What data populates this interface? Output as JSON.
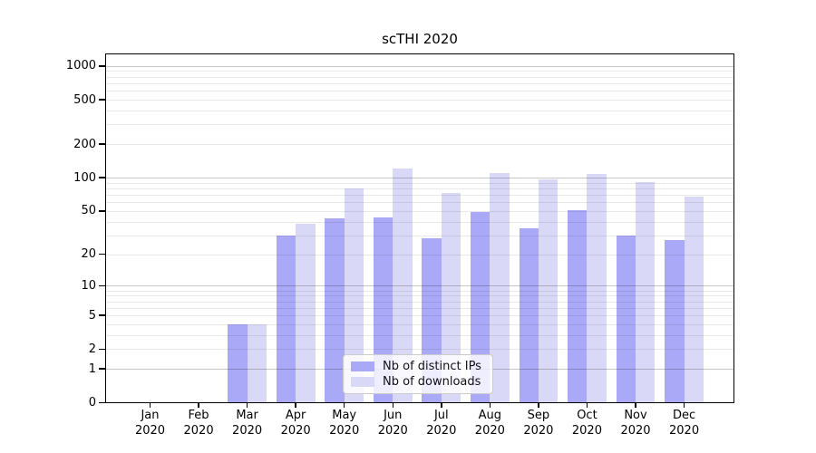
{
  "chart_data": {
    "type": "bar",
    "title": "scTHI 2020",
    "year_label": "2020",
    "categories": [
      "Jan",
      "Feb",
      "Mar",
      "Apr",
      "May",
      "Jun",
      "Jul",
      "Aug",
      "Sep",
      "Oct",
      "Nov",
      "Dec"
    ],
    "series": [
      {
        "name": "Nb of distinct IPs",
        "color": "#a9a9f7",
        "values": [
          0,
          0,
          4,
          30,
          43,
          44,
          28,
          49,
          35,
          51,
          30,
          27
        ]
      },
      {
        "name": "Nb of downloads",
        "color": "#d9d9f7",
        "values": [
          0,
          0,
          4,
          38,
          80,
          121,
          73,
          111,
          96,
          108,
          92,
          68
        ]
      }
    ],
    "xlabel": "",
    "ylabel": "",
    "yscale": "log1p",
    "ylim": [
      0,
      1200
    ],
    "yticks": [
      0,
      1,
      2,
      5,
      10,
      20,
      50,
      100,
      200,
      500,
      1000
    ],
    "ytick_labels": [
      "0",
      "1",
      "2",
      "5",
      "10",
      "20",
      "50",
      "100",
      "200",
      "500",
      "1000"
    ],
    "grid": "on",
    "grid_major_at": [
      1,
      10,
      100,
      1000
    ],
    "grid_minor_subs": [
      2,
      3,
      4,
      5,
      6,
      7,
      8,
      9
    ],
    "legend_position": "lower center",
    "colors": {
      "background": "#ffffff",
      "spine": "#000000",
      "grid_major": "#c7c7c7",
      "grid_minor": "#e9e9e9",
      "text": "#000000"
    }
  }
}
